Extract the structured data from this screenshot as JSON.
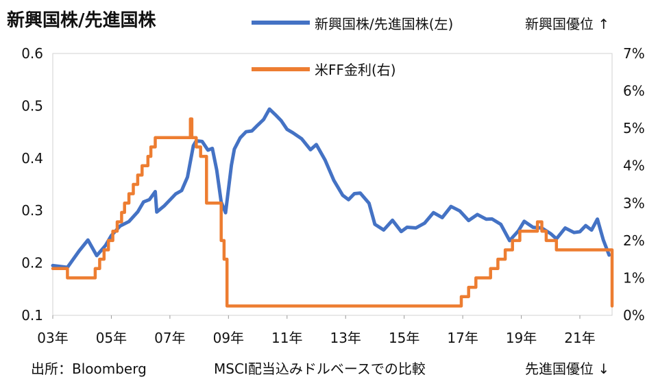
{
  "chart_data": {
    "type": "line",
    "title": "新興国株/先進国株",
    "series": [
      {
        "name": "新興国株/先進国株(左)",
        "axis": "left",
        "color": "#4472C4",
        "x": [
          2003.0,
          2003.5,
          2003.9,
          2004.2,
          2004.5,
          2004.8,
          2005.0,
          2005.3,
          2005.6,
          2005.9,
          2006.1,
          2006.3,
          2006.5,
          2006.55,
          2006.8,
          2007.0,
          2007.2,
          2007.4,
          2007.6,
          2007.8,
          2007.9,
          2008.1,
          2008.3,
          2008.45,
          2008.6,
          2008.75,
          2008.9,
          2009.1,
          2009.2,
          2009.4,
          2009.6,
          2009.8,
          2010.0,
          2010.2,
          2010.4,
          2010.6,
          2010.8,
          2011.0,
          2011.2,
          2011.5,
          2011.8,
          2012.0,
          2012.3,
          2012.6,
          2012.9,
          2013.1,
          2013.3,
          2013.5,
          2013.8,
          2014.0,
          2014.3,
          2014.6,
          2014.9,
          2015.1,
          2015.4,
          2015.7,
          2016.0,
          2016.3,
          2016.6,
          2016.9,
          2017.2,
          2017.5,
          2017.8,
          2018.0,
          2018.3,
          2018.6,
          2018.9,
          2019.1,
          2019.4,
          2019.7,
          2020.0,
          2020.2,
          2020.5,
          2020.8,
          2021.0,
          2021.2,
          2021.4,
          2021.6,
          2021.8,
          2022.0
        ],
        "values": [
          0.195,
          0.19,
          0.22,
          0.24,
          0.21,
          0.23,
          0.25,
          0.27,
          0.28,
          0.3,
          0.32,
          0.325,
          0.34,
          0.3,
          0.31,
          0.32,
          0.33,
          0.335,
          0.36,
          0.42,
          0.43,
          0.43,
          0.415,
          0.42,
          0.38,
          0.32,
          0.3,
          0.39,
          0.42,
          0.44,
          0.45,
          0.45,
          0.46,
          0.47,
          0.49,
          0.48,
          0.47,
          0.455,
          0.45,
          0.44,
          0.42,
          0.43,
          0.4,
          0.36,
          0.33,
          0.32,
          0.33,
          0.33,
          0.31,
          0.27,
          0.26,
          0.28,
          0.26,
          0.27,
          0.27,
          0.28,
          0.3,
          0.29,
          0.31,
          0.3,
          0.28,
          0.29,
          0.28,
          0.28,
          0.27,
          0.24,
          0.26,
          0.28,
          0.27,
          0.27,
          0.26,
          0.25,
          0.27,
          0.26,
          0.26,
          0.27,
          0.26,
          0.28,
          0.24,
          0.215
        ]
      },
      {
        "name": "米FF金利(右)",
        "axis": "right",
        "color": "#ED7D31",
        "step": true,
        "x": [
          2003.0,
          2003.5,
          2004.45,
          2004.6,
          2004.75,
          2004.9,
          2005.05,
          2005.2,
          2005.35,
          2005.45,
          2005.6,
          2005.75,
          2005.9,
          2006.05,
          2006.25,
          2006.35,
          2006.5,
          2007.7,
          2007.75,
          2007.9,
          2008.05,
          2008.25,
          2008.75,
          2008.85,
          2008.95,
          2015.95,
          2016.95,
          2017.2,
          2017.45,
          2017.95,
          2018.2,
          2018.45,
          2018.7,
          2018.95,
          2019.55,
          2019.7,
          2019.85,
          2020.2,
          2022.1
        ],
        "values": [
          1.25,
          1.0,
          1.25,
          1.5,
          1.75,
          2.0,
          2.25,
          2.5,
          2.75,
          3.0,
          3.25,
          3.5,
          3.75,
          4.0,
          4.25,
          4.5,
          4.75,
          5.25,
          4.75,
          4.5,
          4.25,
          3.0,
          2.0,
          1.5,
          0.25,
          0.25,
          0.5,
          0.75,
          1.0,
          1.25,
          1.5,
          1.75,
          2.0,
          2.25,
          2.5,
          2.25,
          2.0,
          1.75,
          0.25
        ]
      }
    ],
    "x_ticks": [
      2003,
      2005,
      2007,
      2009,
      2011,
      2013,
      2015,
      2017,
      2019,
      2021
    ],
    "x_tick_labels": [
      "03年",
      "05年",
      "07年",
      "09年",
      "11年",
      "13年",
      "15年",
      "17年",
      "19年",
      "21年"
    ],
    "x_range": [
      2003,
      2022.1
    ],
    "y_left": {
      "range": [
        0.1,
        0.6
      ],
      "ticks": [
        0.1,
        0.2,
        0.3,
        0.4,
        0.5,
        0.6
      ],
      "tick_labels": [
        "0.1",
        "0.2",
        "0.3",
        "0.4",
        "0.5",
        "0.6"
      ]
    },
    "y_right": {
      "range": [
        0,
        7
      ],
      "ticks": [
        0,
        1,
        2,
        3,
        4,
        5,
        6,
        7
      ],
      "tick_labels": [
        "0%",
        "1%",
        "2%",
        "3%",
        "4%",
        "5%",
        "6%",
        "7%"
      ]
    },
    "legend": {
      "placement": "top",
      "items": [
        "新興国株/先進国株(左)",
        "米FF金利(右)"
      ]
    },
    "annotations": {
      "top_right": "新興国優位 ↑",
      "bottom_right": "先進国優位 ↓",
      "source": "出所：Bloomberg",
      "note": "MSCI配当込みドルベースでの比較"
    }
  }
}
